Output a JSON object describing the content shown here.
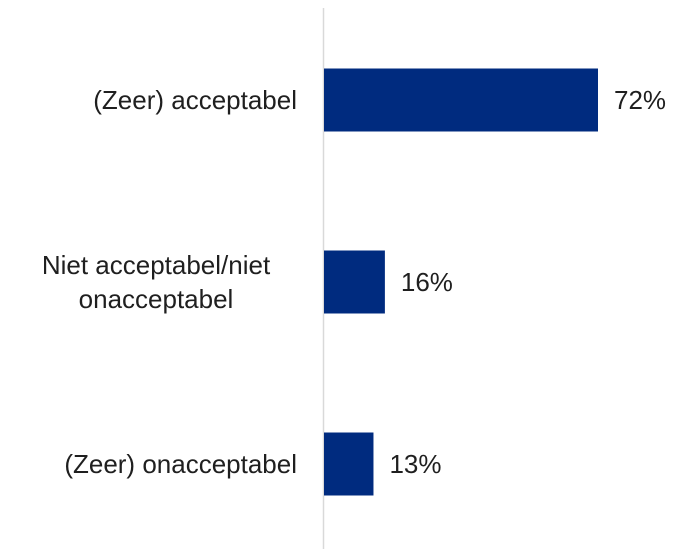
{
  "chart_data": {
    "type": "bar",
    "orientation": "horizontal",
    "categories": [
      [
        "(Zeer) acceptabel"
      ],
      [
        "Niet acceptabel/niet",
        "onacceptabel"
      ],
      [
        "(Zeer) onacceptabel"
      ]
    ],
    "values": [
      72,
      16,
      13
    ],
    "value_labels": [
      "72%",
      "16%",
      "13%"
    ],
    "unit": "%",
    "xlim": [
      0,
      100
    ],
    "grid": false,
    "legend": "none",
    "bar_color": "#002B7F",
    "axis_color": "#D9D9D9"
  }
}
